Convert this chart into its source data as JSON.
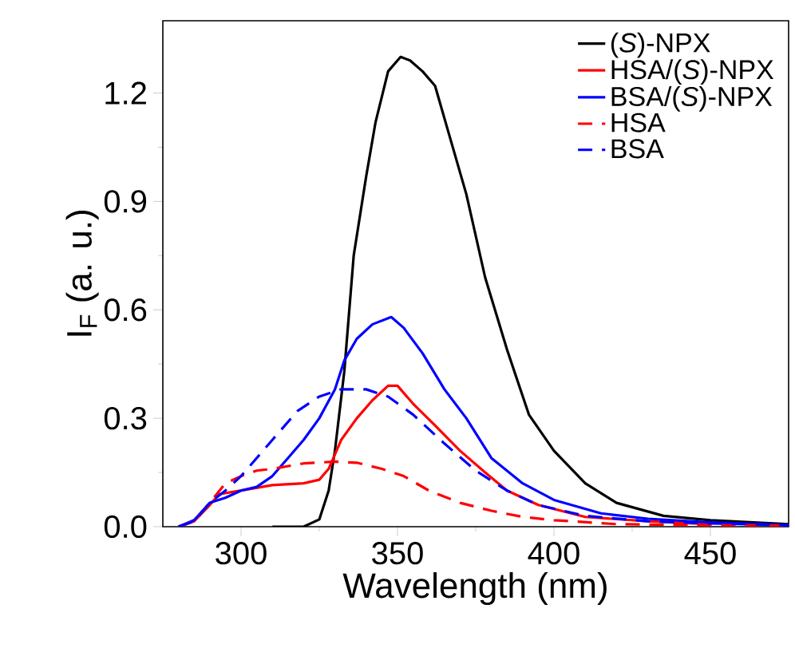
{
  "chart_data": {
    "type": "line",
    "xlabel": "Wavelength (nm)",
    "ylabel": "I$_{F}$ (a. u.)",
    "xlim": [
      275,
      475
    ],
    "ylim": [
      0,
      1.4
    ],
    "xticks": [
      300,
      350,
      400,
      450
    ],
    "yticks": [
      {
        "value": 0,
        "label": "0.0"
      },
      0.3,
      0.6,
      0.9,
      1.2
    ],
    "legend": "top right",
    "grid": false,
    "marker": "none",
    "series": [
      {
        "name": "(*S*)-NPX",
        "color": "#000000",
        "line_style": "solid",
        "x": [
          310,
          320,
          325,
          328,
          330,
          333,
          336,
          340,
          343,
          347,
          351,
          354,
          358,
          362,
          366,
          372,
          378,
          385,
          392,
          400,
          410,
          420,
          435,
          450,
          475
        ],
        "values": [
          0,
          0,
          0.02,
          0.1,
          0.21,
          0.43,
          0.75,
          0.97,
          1.12,
          1.26,
          1.3,
          1.29,
          1.26,
          1.22,
          1.1,
          0.92,
          0.69,
          0.49,
          0.31,
          0.21,
          0.12,
          0.066,
          0.03,
          0.018,
          0.007
        ]
      },
      {
        "name": "HSA/(*S*)-NPX",
        "color": "#ff0000",
        "line_style": "solid",
        "x": [
          280,
          285,
          290,
          293,
          300,
          310,
          320,
          325,
          328,
          332,
          337,
          342,
          347,
          350,
          355,
          362,
          370,
          378,
          385,
          395,
          410,
          430,
          450
        ],
        "values": [
          0,
          0.015,
          0.06,
          0.09,
          0.1,
          0.115,
          0.12,
          0.13,
          0.16,
          0.24,
          0.3,
          0.35,
          0.39,
          0.39,
          0.34,
          0.28,
          0.21,
          0.15,
          0.1,
          0.06,
          0.027,
          0.015,
          0.007
        ]
      },
      {
        "name": "BSA/(*S*)-NPX",
        "color": "#0000ff",
        "line_style": "solid",
        "x": [
          280,
          285,
          290,
          295,
          300,
          305,
          310,
          315,
          320,
          325,
          330,
          333,
          337,
          342,
          348,
          352,
          358,
          365,
          372,
          380,
          390,
          400,
          415,
          430,
          450,
          475
        ],
        "values": [
          0,
          0.018,
          0.066,
          0.08,
          0.1,
          0.11,
          0.14,
          0.19,
          0.24,
          0.3,
          0.38,
          0.46,
          0.52,
          0.56,
          0.58,
          0.55,
          0.48,
          0.38,
          0.3,
          0.19,
          0.12,
          0.074,
          0.037,
          0.022,
          0.012,
          0.004
        ]
      },
      {
        "name": "HSA",
        "color": "#ff0000",
        "line_style": "dashed",
        "x": [
          280,
          285,
          290,
          295,
          300,
          305,
          310,
          320,
          330,
          337,
          345,
          352,
          360,
          370,
          380,
          390,
          400,
          420,
          450,
          475
        ],
        "values": [
          0,
          0.015,
          0.066,
          0.12,
          0.14,
          0.155,
          0.16,
          0.175,
          0.18,
          0.177,
          0.16,
          0.14,
          0.1,
          0.066,
          0.044,
          0.027,
          0.018,
          0.007,
          0.004,
          0.003
        ]
      },
      {
        "name": "BSA",
        "color": "#0000ff",
        "line_style": "dashed",
        "x": [
          280,
          285,
          290,
          295,
          300,
          305,
          310,
          318,
          325,
          332,
          340,
          347,
          355,
          365,
          375,
          385,
          395,
          410,
          430,
          450,
          475
        ],
        "values": [
          0,
          0.015,
          0.066,
          0.1,
          0.14,
          0.19,
          0.24,
          0.32,
          0.36,
          0.38,
          0.38,
          0.36,
          0.31,
          0.23,
          0.155,
          0.1,
          0.06,
          0.03,
          0.015,
          0.009,
          0.004
        ]
      }
    ]
  }
}
